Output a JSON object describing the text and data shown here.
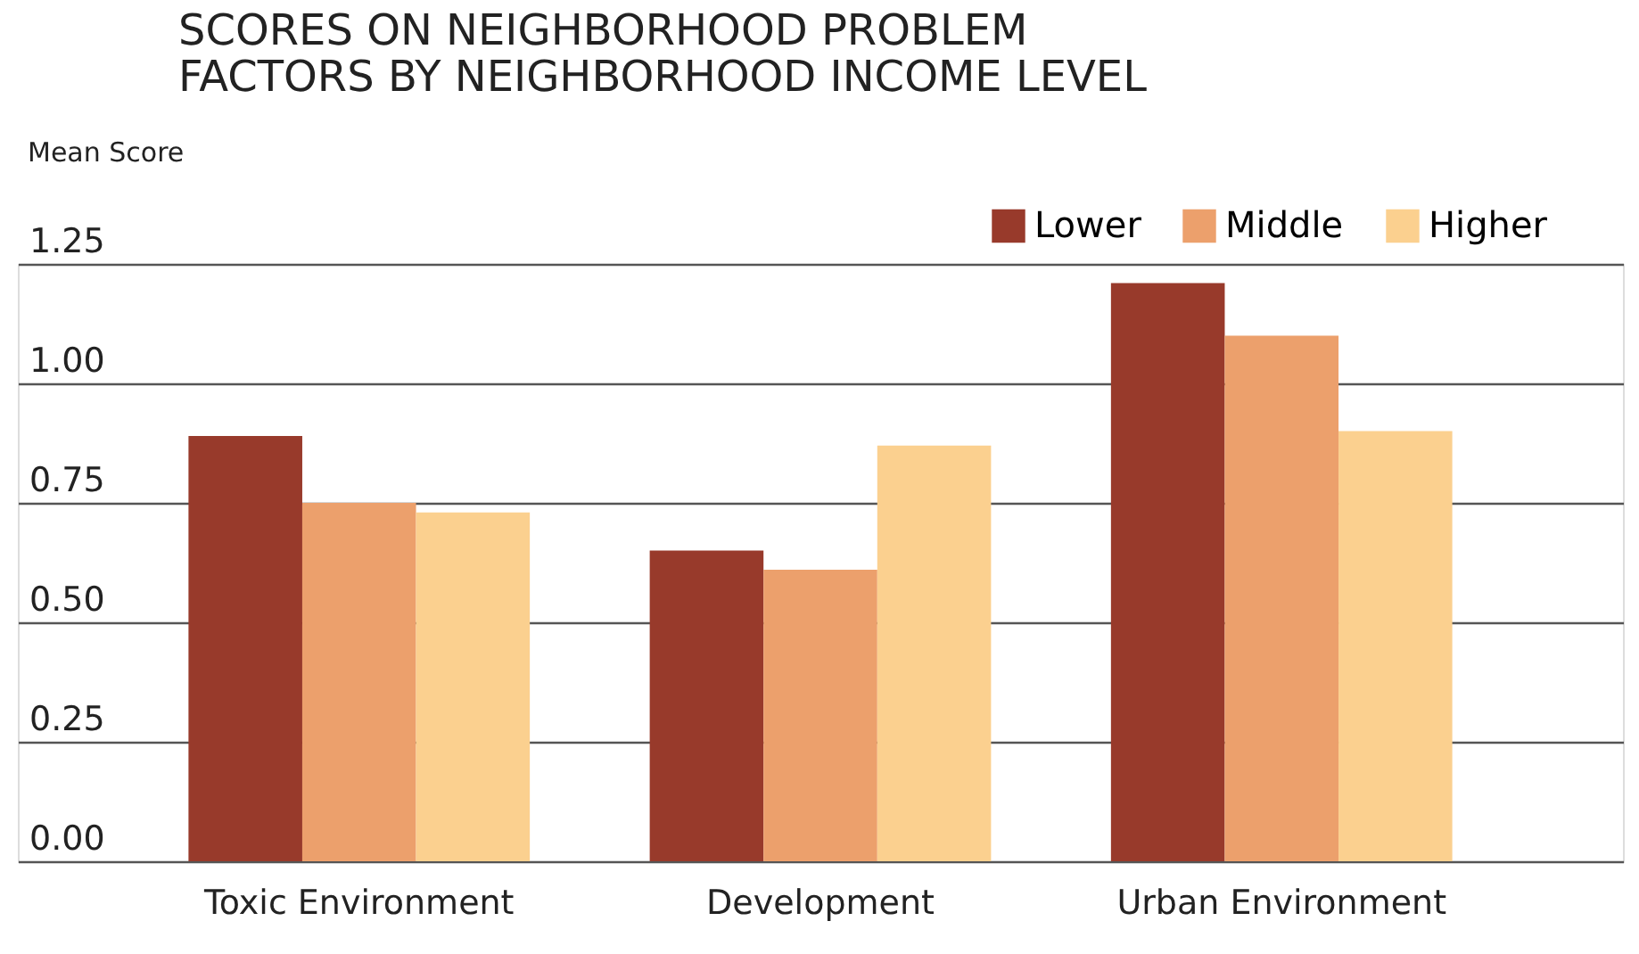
{
  "chart_data": {
    "type": "bar",
    "title": [
      "SCORES ON NEIGHBORHOOD PROBLEM",
      "FACTORS BY NEIGHBORHOOD INCOME LEVEL"
    ],
    "ylabel": "Mean Score",
    "categories": [
      "Toxic Environment",
      "Development",
      "Urban Environment"
    ],
    "series": [
      {
        "name": "Lower",
        "color": "#983a2b",
        "values": [
          0.89,
          0.65,
          1.21
        ]
      },
      {
        "name": "Middle",
        "color": "#eca06c",
        "values": [
          0.75,
          0.61,
          1.1
        ]
      },
      {
        "name": "Higher",
        "color": "#fbd08f",
        "values": [
          0.73,
          0.87,
          0.9
        ]
      }
    ],
    "ylim": [
      0,
      1.25
    ],
    "yticks": [
      {
        "value": 0,
        "label": "0.00"
      },
      {
        "value": 0.25,
        "label": "0.25"
      },
      {
        "value": 0.5,
        "label": "0.50"
      },
      {
        "value": 0.75,
        "label": "0.75"
      },
      {
        "value": 1.0,
        "label": "1.00"
      },
      {
        "value": 1.25,
        "label": "1.25"
      }
    ],
    "grid": "y",
    "legend": "top right"
  }
}
